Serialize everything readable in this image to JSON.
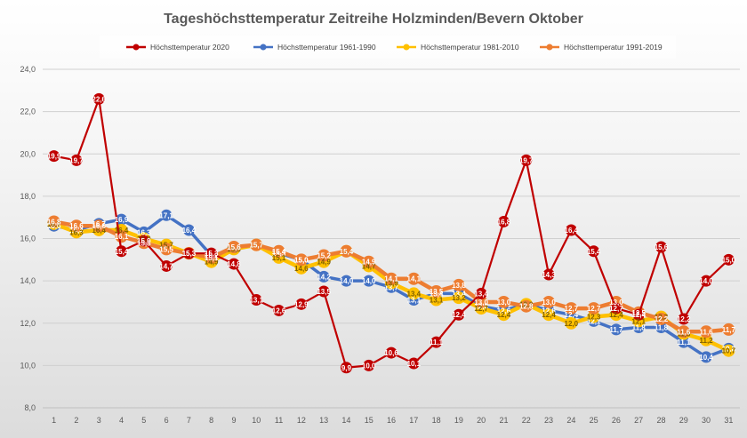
{
  "chart_data": {
    "type": "line",
    "title": "Tageshöchsttemperatur Zeitreihe Holzminden/Bevern Oktober",
    "xlabel": "",
    "ylabel": "",
    "ylim": [
      8.0,
      24.0
    ],
    "yticks": [
      "8,0",
      "10,0",
      "12,0",
      "14,0",
      "16,0",
      "18,0",
      "20,0",
      "22,0",
      "24,0"
    ],
    "ytick_values": [
      8,
      10,
      12,
      14,
      16,
      18,
      20,
      22,
      24
    ],
    "x": [
      1,
      2,
      3,
      4,
      5,
      6,
      7,
      8,
      9,
      10,
      11,
      12,
      13,
      14,
      15,
      16,
      17,
      18,
      19,
      20,
      21,
      22,
      23,
      24,
      25,
      26,
      27,
      28,
      29,
      30,
      31
    ],
    "grid": true,
    "legend_position": "top",
    "series": [
      {
        "name": "Höchsttemperatur 2020",
        "color": "#c00000",
        "values": [
          19.9,
          19.7,
          22.6,
          15.4,
          15.9,
          14.7,
          15.3,
          15.3,
          14.8,
          13.1,
          12.6,
          12.9,
          13.5,
          9.9,
          10.0,
          10.6,
          10.1,
          11.1,
          12.4,
          13.4,
          16.8,
          19.7,
          14.3,
          16.4,
          15.4,
          12.7,
          12.4,
          15.6,
          12.2,
          14.0,
          15.0
        ],
        "labels": [
          "19,9",
          "19,7",
          "22,6",
          "15,4",
          "15,9",
          "14,7",
          "15,3",
          "15,3",
          "14,8",
          "13,1",
          "12,6",
          "12,9",
          "13,5",
          "9,9",
          "10,0",
          "10,6",
          "10,1",
          "11,1",
          "12,4",
          "13,4",
          "16,8",
          "19,7",
          "14,3",
          "16,4",
          "15,4",
          "12,7",
          "12,4",
          "15,6",
          "12,2",
          "14,0",
          "15,0"
        ]
      },
      {
        "name": "Höchsttemperatur 1961-1990",
        "color": "#4472c4",
        "values": [
          16.6,
          16.4,
          16.7,
          16.9,
          16.3,
          17.1,
          16.4,
          15.2,
          15.5,
          15.7,
          15.3,
          15.0,
          14.2,
          14.0,
          14.0,
          13.7,
          13.1,
          13.4,
          13.4,
          12.8,
          12.6,
          12.9,
          12.6,
          12.4,
          12.1,
          11.7,
          11.8,
          11.8,
          11.1,
          10.4,
          10.8
        ],
        "labels": [
          "16,6",
          "16,4",
          "16,7",
          "16,9",
          "16,3",
          "17,1",
          "16,4",
          "15,2",
          "15,5",
          "15,7",
          "15,3",
          "15,0",
          "14,2",
          "14,0",
          "14,0",
          "13,7",
          "13,1",
          "13,4",
          "13,4",
          "12,8",
          "12,6",
          "12,9",
          "12,6",
          "12,4",
          "12,1",
          "11,7",
          "11,8",
          "11,8",
          "11,1",
          "10,4",
          "10,8"
        ]
      },
      {
        "name": "Höchsttemperatur 1981-2010",
        "color": "#ffc000",
        "values": [
          16.7,
          16.3,
          16.4,
          16.4,
          16.0,
          15.7,
          15.3,
          14.9,
          15.5,
          15.7,
          15.1,
          14.6,
          14.9,
          15.4,
          14.7,
          13.9,
          13.4,
          13.1,
          13.2,
          12.7,
          12.4,
          12.9,
          12.4,
          12.0,
          12.3,
          12.4,
          12.1,
          12.3,
          11.5,
          11.2,
          10.7
        ],
        "labels": [
          "16,7",
          "16,3",
          "16,4",
          "16,4",
          "16,0",
          "15,7",
          "15,3",
          "14,9",
          "15,5",
          "15,7",
          "15,1",
          "14,6",
          "14,9",
          "15,4",
          "14,7",
          "13,9",
          "13,4",
          "13,1",
          "13,2",
          "12,7",
          "12,4",
          "12,9",
          "12,4",
          "12,0",
          "12,3",
          "12,4",
          "12,1",
          "12,3",
          "11,5",
          "11,2",
          "10,7"
        ]
      },
      {
        "name": "Höchsttemperatur 1991-2019",
        "color": "#ed7d31",
        "values": [
          16.8,
          16.6,
          16.6,
          16.1,
          15.8,
          15.5,
          15.3,
          15.1,
          15.6,
          15.7,
          15.4,
          15.0,
          15.2,
          15.4,
          14.9,
          14.1,
          14.1,
          13.5,
          13.8,
          13.0,
          13.0,
          12.8,
          13.0,
          12.7,
          12.7,
          13.0,
          12.5,
          12.2,
          11.6,
          11.6,
          11.7
        ],
        "labels": [
          "16,8",
          "16,6",
          "16,6",
          "16,1",
          "15,8",
          "15,5",
          "15,3",
          "15,1",
          "15,6",
          "15,7",
          "15,4",
          "15,0",
          "15,2",
          "15,4",
          "14,9",
          "14,1",
          "14,1",
          "13,5",
          "13,8",
          "13,0",
          "13,0",
          "12,8",
          "13,0",
          "12,7",
          "12,7",
          "13,0",
          "12,5",
          "12,2",
          "11,6",
          "11,6",
          "11,7"
        ]
      }
    ]
  }
}
